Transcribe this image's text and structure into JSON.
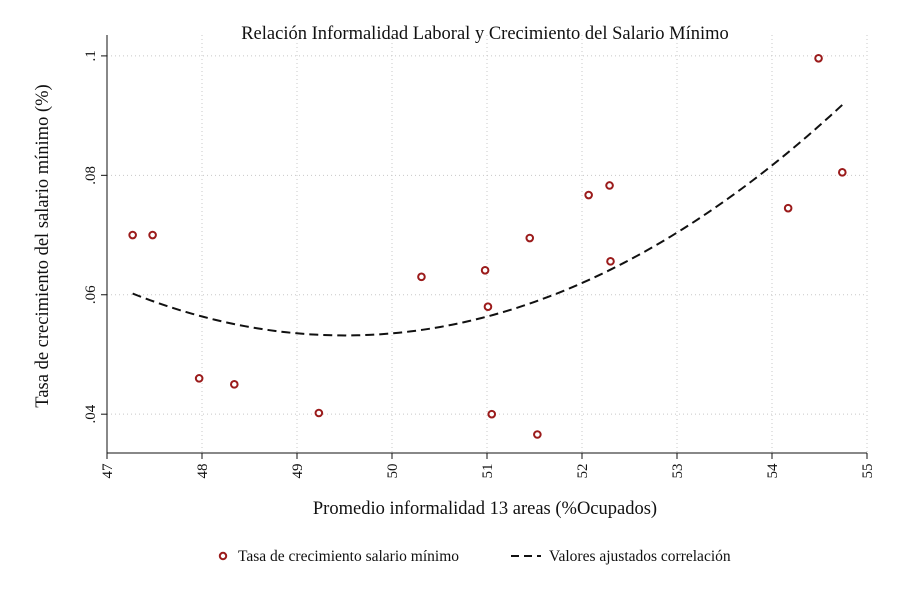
{
  "chart_data": {
    "type": "scatter",
    "title": "Relación Informalidad Laboral y Crecimiento del Salario Mínimo",
    "xlabel": "Promedio informalidad 13 areas (%Ocupados)",
    "ylabel": "Tasa de crecimiento del salario mínimo (%)",
    "xlim": [
      47,
      55
    ],
    "ylim": [
      0.0335,
      0.1035
    ],
    "x_ticks": [
      47,
      48,
      49,
      50,
      51,
      52,
      53,
      54,
      55
    ],
    "x_tick_labels": [
      "47",
      "48",
      "49",
      "50",
      "51",
      "52",
      "53",
      "54",
      "55"
    ],
    "y_ticks": [
      0.04,
      0.06,
      0.08,
      0.1
    ],
    "y_tick_labels": [
      ".04",
      ".06",
      ".08",
      ".1"
    ],
    "grid": true,
    "legend_position": "bottom",
    "series": [
      {
        "name": "Tasa de crecimiento salario mínimo",
        "kind": "scatter",
        "color": "#9b1b1b",
        "points": [
          {
            "x": 47.27,
            "y": 0.07
          },
          {
            "x": 47.48,
            "y": 0.07
          },
          {
            "x": 47.97,
            "y": 0.046
          },
          {
            "x": 48.34,
            "y": 0.045
          },
          {
            "x": 49.23,
            "y": 0.0402
          },
          {
            "x": 50.31,
            "y": 0.063
          },
          {
            "x": 50.98,
            "y": 0.0641
          },
          {
            "x": 51.01,
            "y": 0.058
          },
          {
            "x": 51.05,
            "y": 0.04
          },
          {
            "x": 51.45,
            "y": 0.0695
          },
          {
            "x": 51.53,
            "y": 0.0366
          },
          {
            "x": 52.07,
            "y": 0.0767
          },
          {
            "x": 52.29,
            "y": 0.0783
          },
          {
            "x": 52.3,
            "y": 0.0656
          },
          {
            "x": 54.17,
            "y": 0.0745
          },
          {
            "x": 54.49,
            "y": 0.0996
          },
          {
            "x": 54.74,
            "y": 0.0805
          }
        ]
      },
      {
        "name": "Valores ajustados correlación",
        "kind": "fit",
        "color": "#111111",
        "x_range": [
          47.27,
          54.74
        ],
        "points": [
          {
            "x": 47.27,
            "y": 0.0602
          },
          {
            "x": 49.6,
            "y": 0.0532
          },
          {
            "x": 54.74,
            "y": 0.0918
          }
        ]
      }
    ]
  }
}
